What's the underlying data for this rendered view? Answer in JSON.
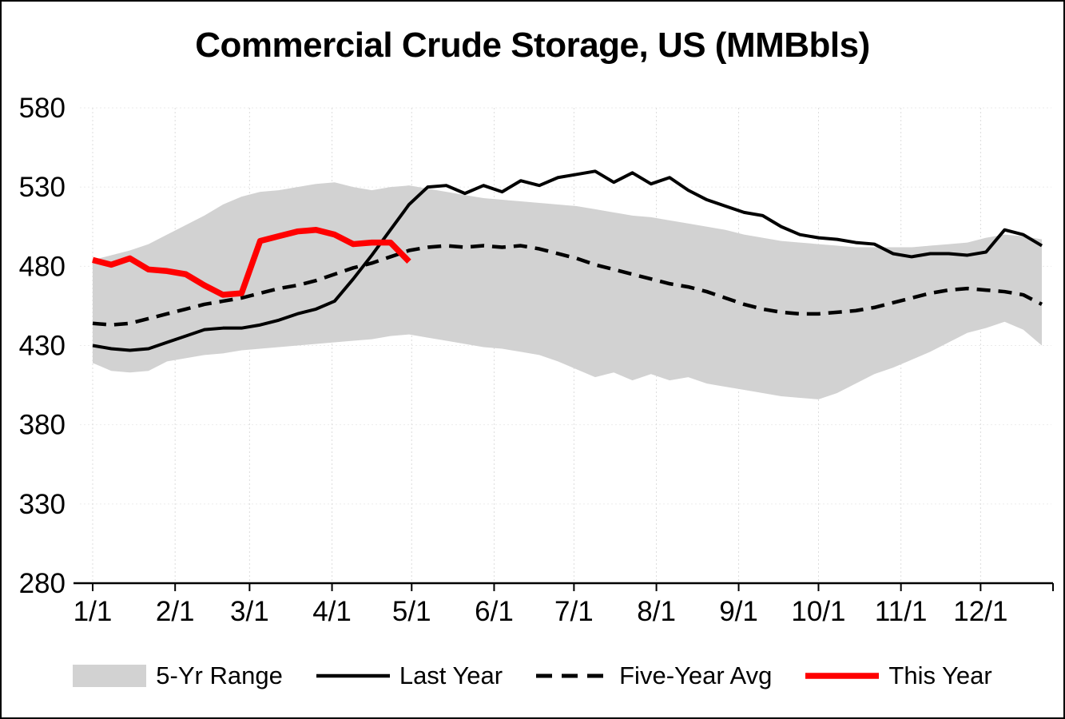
{
  "chart_data": {
    "type": "line",
    "title": "Commercial Crude Storage, US (MMBbls)",
    "ylim": [
      280,
      580
    ],
    "y_ticks": [
      280,
      330,
      380,
      430,
      480,
      530,
      580
    ],
    "x_tick_labels": [
      "1/1",
      "2/1",
      "3/1",
      "4/1",
      "5/1",
      "6/1",
      "7/1",
      "8/1",
      "9/1",
      "10/1",
      "11/1",
      "12/1"
    ],
    "x_tick_weeks": [
      0,
      4.43,
      8.43,
      12.86,
      17.14,
      21.57,
      25.86,
      30.29,
      34.71,
      39.0,
      43.43,
      47.71
    ],
    "weeks": 52,
    "grid": "light-dotted",
    "band": {
      "name": "5-Yr Range",
      "color": "#d2d2d2",
      "upper": [
        484,
        487,
        490,
        494,
        500,
        506,
        512,
        519,
        524,
        527,
        528,
        530,
        532,
        533,
        530,
        528,
        530,
        531,
        529,
        527,
        525,
        523,
        522,
        521,
        520,
        519,
        518,
        516,
        514,
        512,
        511,
        509,
        507,
        505,
        503,
        500,
        498,
        496,
        495,
        494,
        493,
        492,
        492,
        492,
        492,
        493,
        494,
        495,
        498,
        500,
        499,
        497
      ],
      "lower": [
        419,
        414,
        413,
        414,
        420,
        422,
        424,
        425,
        427,
        428,
        429,
        430,
        431,
        432,
        433,
        434,
        436,
        437,
        435,
        433,
        431,
        429,
        428,
        426,
        424,
        420,
        415,
        410,
        413,
        408,
        412,
        408,
        410,
        406,
        404,
        402,
        400,
        398,
        397,
        396,
        400,
        406,
        412,
        416,
        421,
        426,
        432,
        438,
        441,
        445,
        440,
        430
      ]
    },
    "series": [
      {
        "name": "Last Year",
        "color": "#000000",
        "style": "solid",
        "values": [
          430,
          428,
          427,
          428,
          432,
          436,
          440,
          441,
          441,
          443,
          446,
          450,
          453,
          458,
          472,
          487,
          503,
          519,
          530,
          531,
          526,
          531,
          527,
          534,
          531,
          536,
          538,
          540,
          533,
          539,
          532,
          536,
          528,
          522,
          518,
          514,
          512,
          505,
          500,
          498,
          497,
          495,
          494,
          488,
          486,
          488,
          488,
          487,
          489,
          503,
          500,
          493
        ]
      },
      {
        "name": "Five-Year Avg",
        "color": "#000000",
        "style": "dashed",
        "values": [
          444,
          443,
          444,
          447,
          450,
          453,
          456,
          458,
          460,
          463,
          466,
          468,
          471,
          475,
          479,
          482,
          486,
          490,
          492,
          493,
          492,
          493,
          492,
          493,
          491,
          488,
          485,
          481,
          478,
          475,
          472,
          469,
          467,
          464,
          460,
          456,
          453,
          451,
          450,
          450,
          451,
          452,
          454,
          457,
          460,
          463,
          465,
          466,
          465,
          464,
          462,
          456
        ]
      },
      {
        "name": "This Year",
        "color": "#ff0000",
        "style": "solid-thick",
        "values": [
          484,
          481,
          485,
          478,
          477,
          475,
          468,
          462,
          463,
          496,
          499,
          502,
          503,
          500,
          494,
          495,
          495,
          483
        ]
      }
    ],
    "legend": [
      "5-Yr Range",
      "Last Year",
      "Five-Year Avg",
      "This Year"
    ],
    "legend_position": "bottom"
  }
}
